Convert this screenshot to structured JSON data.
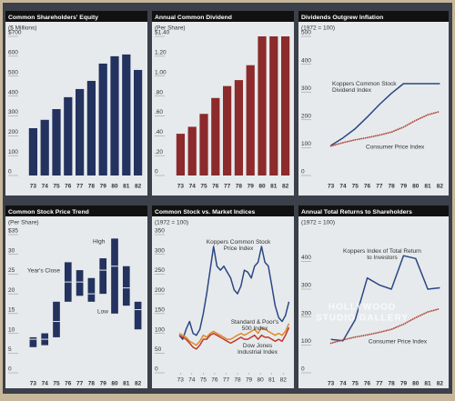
{
  "chart_data": [
    {
      "type": "bar",
      "title": "Common Shareholders' Equity",
      "subtitle": "($ Millions)",
      "categories": [
        "73",
        "74",
        "75",
        "76",
        "77",
        "78",
        "79",
        "80",
        "81",
        "82"
      ],
      "values": [
        238,
        280,
        334,
        394,
        435,
        476,
        563,
        600,
        609,
        531
      ],
      "color": "#23325e",
      "ylim": [
        0,
        700
      ],
      "yticks": [
        0,
        100,
        200,
        300,
        400,
        500,
        600,
        {
          "value": 700,
          "label": "$700"
        }
      ]
    },
    {
      "type": "bar",
      "title": "Annual Common Dividend",
      "subtitle": "(Per Share)",
      "categories": [
        "73",
        "74",
        "75",
        "76",
        "77",
        "78",
        "79",
        "80",
        "81",
        "82"
      ],
      "values": [
        0.42,
        0.49,
        0.62,
        0.78,
        0.9,
        0.96,
        1.11,
        1.4,
        1.4,
        1.4
      ],
      "color": "#8c2a2c",
      "ylim": [
        0,
        1.4
      ],
      "yticks": [
        0,
        {
          "value": 0.2,
          "label": ".20"
        },
        {
          "value": 0.4,
          "label": ".40"
        },
        {
          "value": 0.6,
          "label": ".60"
        },
        {
          "value": 0.8,
          "label": ".80"
        },
        {
          "value": 1,
          "label": "1.00"
        },
        {
          "value": 1.2,
          "label": "1.20"
        },
        {
          "value": 1.4,
          "label": "$1.40"
        }
      ]
    },
    {
      "type": "line",
      "title": "Dividends Outgrew Inflation",
      "subtitle": "(1972 = 100)",
      "categories": [
        "73",
        "74",
        "75",
        "76",
        "77",
        "78",
        "79",
        "80",
        "81",
        "82"
      ],
      "ylim": [
        0,
        500
      ],
      "yticks": [
        0,
        100,
        200,
        300,
        400,
        500
      ],
      "series": [
        {
          "name": "Koppers Common Stock Dividend Index",
          "color": "#2b4683",
          "values": [
            108,
            135,
            168,
            210,
            255,
            295,
            330,
            330,
            330,
            330
          ]
        },
        {
          "name": "Consumer Price Index",
          "color": "#b4473a",
          "dotted": true,
          "values": [
            106,
            118,
            128,
            136,
            145,
            156,
            174,
            198,
            218,
            230
          ]
        }
      ]
    },
    {
      "type": "range",
      "title": "Common Stock Price Trend",
      "subtitle": "(Per Share)",
      "categories": [
        "73",
        "74",
        "75",
        "76",
        "77",
        "78",
        "79",
        "80",
        "81",
        "82"
      ],
      "ylim": [
        0,
        35
      ],
      "yticks": [
        0,
        5,
        10,
        15,
        20,
        25,
        30,
        {
          "value": 35,
          "label": "$35"
        }
      ],
      "series": [
        {
          "name": "High",
          "color": "#23325e",
          "values": [
            9,
            10,
            18,
            28,
            26,
            24,
            29,
            34,
            27,
            18
          ]
        },
        {
          "name": "Low",
          "color": "#23325e",
          "values": [
            6.5,
            7,
            9,
            18,
            19.5,
            18,
            20,
            15,
            17,
            11
          ]
        },
        {
          "name": "Year's Close",
          "color": "#e6eaec",
          "values": [
            8.5,
            8.5,
            13,
            23,
            23,
            20,
            26,
            27,
            21.5,
            16
          ]
        }
      ]
    },
    {
      "type": "line",
      "title": "Common Stock vs. Market Indices",
      "subtitle": "(1972 = 100)",
      "x": [
        72.9,
        73.2,
        73.5,
        73.8,
        74.1,
        74.4,
        74.7,
        75.0,
        75.3,
        75.6,
        75.9,
        76.2,
        76.5,
        76.8,
        77.1,
        77.4,
        77.7,
        78.0,
        78.3,
        78.6,
        78.9,
        79.2,
        79.5,
        79.8,
        80.1,
        80.4,
        80.7,
        81.0,
        81.3,
        81.6,
        81.9,
        82.2,
        82.5
      ],
      "xlim": [
        72.5,
        82.7
      ],
      "xticks": [
        73,
        74,
        75,
        76,
        77,
        78,
        79,
        80,
        81,
        82
      ],
      "ylim": [
        0,
        350
      ],
      "yticks": [
        0,
        50,
        100,
        150,
        200,
        250,
        300,
        350
      ],
      "series": [
        {
          "name": "Koppers Common Stock Price Index",
          "color": "#2b4683",
          "values": [
            95,
            85,
            110,
            130,
            100,
            95,
            110,
            150,
            200,
            260,
            320,
            270,
            260,
            270,
            255,
            240,
            210,
            200,
            220,
            260,
            255,
            240,
            270,
            280,
            320,
            280,
            270,
            220,
            170,
            140,
            130,
            145,
            180
          ]
        },
        {
          "name": "Standard & Poor's 500 Index",
          "color": "#e08a2a",
          "values": [
            100,
            95,
            90,
            80,
            75,
            70,
            80,
            95,
            90,
            100,
            105,
            100,
            95,
            90,
            85,
            85,
            90,
            95,
            100,
            95,
            100,
            105,
            110,
            100,
            115,
            110,
            105,
            100,
            95,
            100,
            95,
            105,
            125
          ]
        },
        {
          "name": "Dow Jones Industrial Index",
          "color": "#c0392b",
          "values": [
            95,
            90,
            85,
            75,
            65,
            60,
            70,
            85,
            85,
            95,
            100,
            95,
            90,
            85,
            80,
            75,
            80,
            85,
            90,
            85,
            85,
            90,
            95,
            85,
            95,
            90,
            90,
            85,
            80,
            85,
            80,
            95,
            115
          ]
        }
      ]
    },
    {
      "type": "line",
      "title": "Annual Total Returns to Shareholders",
      "subtitle": "(1972 = 100)",
      "categories": [
        "73",
        "74",
        "75",
        "76",
        "77",
        "78",
        "79",
        "80",
        "81",
        "82"
      ],
      "ylim": [
        0,
        450
      ],
      "yticks": [
        0,
        100,
        200,
        300,
        400
      ],
      "series": [
        {
          "name": "Koppers Index of Total Return to Investors",
          "color": "#2b4683",
          "values": [
            120,
            115,
            190,
            340,
            315,
            300,
            420,
            410,
            300,
            305
          ]
        },
        {
          "name": "Consumer Price Index",
          "color": "#b4473a",
          "dotted": true,
          "values": [
            106,
            118,
            128,
            136,
            145,
            156,
            174,
            198,
            218,
            230
          ]
        }
      ]
    }
  ],
  "watermark": [
    "HOLLYWOOD",
    "STUDIO GALLERY"
  ]
}
